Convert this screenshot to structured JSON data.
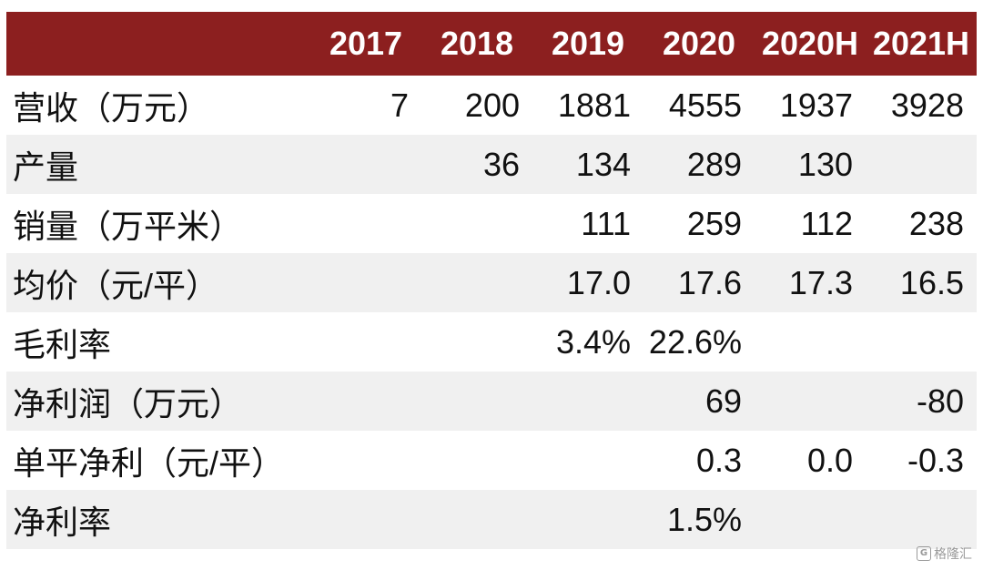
{
  "table": {
    "columns": [
      "",
      "2017",
      "2018",
      "2019",
      "2020",
      "2020H",
      "2021H"
    ],
    "rows": [
      {
        "label": "营收（万元）",
        "values": [
          "7",
          "200",
          "1881",
          "4555",
          "1937",
          "3928"
        ]
      },
      {
        "label": "产量",
        "values": [
          "",
          "36",
          "134",
          "289",
          "130",
          ""
        ]
      },
      {
        "label": "销量（万平米）",
        "values": [
          "",
          "",
          "111",
          "259",
          "112",
          "238"
        ]
      },
      {
        "label": "均价（元/平）",
        "values": [
          "",
          "",
          "17.0",
          "17.6",
          "17.3",
          "16.5"
        ]
      },
      {
        "label": "毛利率",
        "values": [
          "",
          "",
          "3.4%",
          "22.6%",
          "",
          ""
        ]
      },
      {
        "label": "净利润（万元）",
        "values": [
          "",
          "",
          "",
          "69",
          "",
          "-80"
        ]
      },
      {
        "label": "单平净利（元/平）",
        "values": [
          "",
          "",
          "",
          "0.3",
          "0.0",
          "-0.3"
        ]
      },
      {
        "label": "净利率",
        "values": [
          "",
          "",
          "",
          "1.5%",
          "",
          ""
        ]
      }
    ]
  },
  "colors": {
    "header_bg": "#8c1f1f",
    "header_text": "#ffffff",
    "row_shade": "#f0f0f0"
  },
  "watermark": {
    "icon": "gelonghui-logo-icon",
    "text": "格隆汇"
  }
}
